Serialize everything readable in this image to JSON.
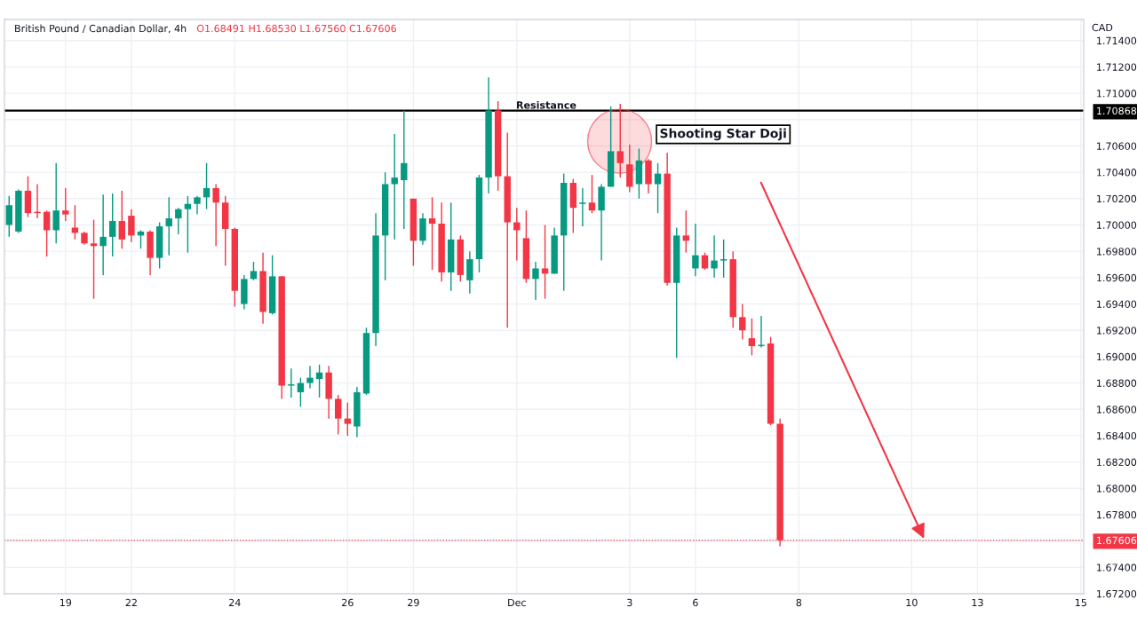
{
  "chart_data": {
    "type": "candlestick",
    "title": "British Pound / Canadian Dollar, 4h",
    "subtitle": "O1.68491 H1.68530 L1.67560 C1.67606",
    "ylabel": "CAD",
    "categories": [
      null,
      null,
      null,
      null,
      null,
      null,
      "19",
      null,
      null,
      null,
      null,
      null,
      null,
      "22",
      null,
      null,
      null,
      null,
      null,
      null,
      null,
      null,
      null,
      null,
      "24",
      null,
      null,
      null,
      null,
      null,
      null,
      null,
      null,
      null,
      null,
      null,
      "26",
      null,
      null,
      null,
      null,
      null,
      null,
      "29",
      null,
      null,
      null,
      null,
      null,
      null,
      null,
      null,
      null,
      null,
      "Dec",
      null,
      null,
      null,
      null,
      null,
      null,
      null,
      null,
      null,
      null,
      null,
      "3",
      null,
      null,
      null,
      null,
      null,
      null,
      "6",
      null,
      null,
      null,
      null,
      null,
      null,
      null,
      null,
      null,
      null,
      "8",
      null,
      null,
      null,
      null,
      null,
      null,
      null,
      null,
      null,
      null,
      null,
      "10",
      null,
      null,
      null,
      null,
      null,
      null,
      "13",
      null,
      null,
      null,
      null,
      null,
      null,
      null,
      null,
      null,
      null,
      "15"
    ],
    "ohlc": [
      [
        1.7,
        1.7022,
        1.6991,
        1.7015
      ],
      [
        1.6995,
        1.7027,
        1.6994,
        1.7026
      ],
      [
        1.7026,
        1.7037,
        1.7006,
        1.7009
      ],
      [
        1.701,
        1.7031,
        1.7005,
        1.7009
      ],
      [
        1.701,
        1.7011,
        1.6976,
        1.6996
      ],
      [
        1.6996,
        1.7047,
        1.6986,
        1.7011
      ],
      [
        1.7011,
        1.7028,
        1.7003,
        1.7008
      ],
      [
        1.6998,
        1.7015,
        1.6989,
        1.6994
      ],
      [
        1.6994,
        1.6995,
        1.6985,
        1.6986
      ],
      [
        1.6986,
        1.7004,
        1.6944,
        1.6984
      ],
      [
        1.6984,
        1.7023,
        1.6962,
        1.6991
      ],
      [
        1.6991,
        1.7024,
        1.6976,
        1.7003
      ],
      [
        1.7003,
        1.7026,
        1.6982,
        1.6989
      ],
      [
        1.7007,
        1.7012,
        1.6987,
        1.6992
      ],
      [
        1.6992,
        1.6996,
        1.6982,
        1.6995
      ],
      [
        1.6995,
        1.6996,
        1.6962,
        1.6975
      ],
      [
        1.6975,
        1.7002,
        1.6967,
        1.6999
      ],
      [
        1.6999,
        1.7021,
        1.6977,
        1.7005
      ],
      [
        1.7005,
        1.7013,
        1.6993,
        1.7012
      ],
      [
        1.7012,
        1.7022,
        1.6979,
        1.7016
      ],
      [
        1.7016,
        1.7022,
        1.7008,
        1.7021
      ],
      [
        1.7021,
        1.7047,
        1.7012,
        1.7028
      ],
      [
        1.7028,
        1.7031,
        1.6984,
        1.7017
      ],
      [
        1.7017,
        1.7022,
        1.6969,
        1.6997
      ],
      [
        1.6997,
        1.6998,
        1.6938,
        1.695
      ],
      [
        1.694,
        1.6962,
        1.6936,
        1.6959
      ],
      [
        1.6959,
        1.6972,
        1.6958,
        1.6965
      ],
      [
        1.6965,
        1.6979,
        1.6925,
        1.6934
      ],
      [
        1.6933,
        1.6977,
        1.6932,
        1.6961
      ],
      [
        1.6961,
        1.6961,
        1.6868,
        1.6878
      ],
      [
        1.6878,
        1.6891,
        1.6869,
        1.6879
      ],
      [
        1.6873,
        1.6884,
        1.6862,
        1.688
      ],
      [
        1.688,
        1.6893,
        1.6876,
        1.6884
      ],
      [
        1.6883,
        1.6894,
        1.6869,
        1.6888
      ],
      [
        1.6888,
        1.6893,
        1.6853,
        1.6868
      ],
      [
        1.6868,
        1.6871,
        1.6841,
        1.6853
      ],
      [
        1.6853,
        1.6865,
        1.684,
        1.6849
      ],
      [
        1.6847,
        1.6877,
        1.6839,
        1.6873
      ],
      [
        1.6872,
        1.6922,
        1.6871,
        1.6918
      ],
      [
        1.6918,
        1.7009,
        1.6908,
        1.6992
      ],
      [
        1.6992,
        1.704,
        1.6958,
        1.7031
      ],
      [
        1.7031,
        1.7069,
        1.6989,
        1.7036
      ],
      [
        1.7034,
        1.7087,
        1.6997,
        1.7047
      ],
      [
        1.702,
        1.702,
        1.6969,
        1.6988
      ],
      [
        1.6988,
        1.7009,
        1.6985,
        1.7005
      ],
      [
        1.7005,
        1.7021,
        1.6966,
        1.7001
      ],
      [
        1.7001,
        1.7017,
        1.6957,
        1.6964
      ],
      [
        1.6964,
        1.7017,
        1.695,
        1.6989
      ],
      [
        1.6989,
        1.6992,
        1.6957,
        1.6962
      ],
      [
        1.6958,
        1.698,
        1.6948,
        1.6974
      ],
      [
        1.6974,
        1.7038,
        1.6964,
        1.7036
      ],
      [
        1.7036,
        1.7112,
        1.7024,
        1.7087
      ],
      [
        1.7087,
        1.7094,
        1.7026,
        1.7037
      ],
      [
        1.7037,
        1.707,
        1.6922,
        1.7002
      ],
      [
        1.7002,
        1.7013,
        1.6973,
        1.6996
      ],
      [
        1.699,
        1.7011,
        1.6956,
        1.6959
      ],
      [
        1.6959,
        1.6972,
        1.6943,
        1.6967
      ],
      [
        1.6967,
        1.7,
        1.6944,
        1.6963
      ],
      [
        1.6963,
        1.6998,
        1.6963,
        1.6992
      ],
      [
        1.6992,
        1.7039,
        1.695,
        1.7032
      ],
      [
        1.7032,
        1.7035,
        1.6994,
        1.7013
      ],
      [
        1.7016,
        1.7028,
        1.6999,
        1.7017
      ],
      [
        1.7017,
        1.7038,
        1.7009,
        1.7011
      ],
      [
        1.7011,
        1.7031,
        1.6973,
        1.7029
      ],
      [
        1.7029,
        1.709,
        1.7029,
        1.7056
      ],
      [
        1.7056,
        1.7092,
        1.7036,
        1.7047
      ],
      [
        1.7046,
        1.7061,
        1.7025,
        1.7029
      ],
      [
        1.7031,
        1.7058,
        1.702,
        1.7049
      ],
      [
        1.7049,
        1.705,
        1.7024,
        1.7031
      ],
      [
        1.7031,
        1.7047,
        1.7009,
        1.7039
      ],
      [
        1.7039,
        1.7055,
        1.6954,
        1.6956
      ],
      [
        1.6956,
        1.6998,
        1.6899,
        1.6992
      ],
      [
        1.6992,
        1.7011,
        1.6979,
        1.6988
      ],
      [
        1.6967,
        1.7001,
        1.6961,
        1.6977
      ],
      [
        1.6977,
        1.6979,
        1.6966,
        1.6967
      ],
      [
        1.6967,
        1.6992,
        1.696,
        1.6973
      ],
      [
        1.6973,
        1.6989,
        1.696,
        1.6974
      ],
      [
        1.6974,
        1.698,
        1.6922,
        1.693
      ],
      [
        1.693,
        1.694,
        1.6913,
        1.692
      ],
      [
        1.6914,
        1.6929,
        1.6901,
        1.6908
      ],
      [
        1.6908,
        1.6931,
        1.6907,
        1.6909
      ],
      [
        1.691,
        1.6915,
        1.6848,
        1.6849
      ],
      [
        1.68491,
        1.6853,
        1.6756,
        1.67606
      ],
      null,
      null,
      null,
      null,
      null,
      null,
      null,
      null,
      null,
      null,
      null,
      null,
      null,
      null,
      null,
      null,
      null,
      null,
      null,
      null,
      null,
      null,
      null,
      null,
      null,
      null,
      null,
      null,
      null,
      null,
      null,
      null
    ],
    "colors": [
      "#089981",
      "#089981",
      "#f23645",
      "#f23645",
      "#f23645",
      "#089981",
      "#f23645",
      "#f23645",
      "#f23645",
      "#f23645",
      "#089981",
      "#089981",
      "#f23645",
      "#f23645",
      "#089981",
      "#f23645",
      "#089981",
      "#089981",
      "#089981",
      "#089981",
      "#089981",
      "#089981",
      "#f23645",
      "#f23645",
      "#f23645",
      "#089981",
      "#089981",
      "#f23645",
      "#089981",
      "#f23645",
      "#089981",
      "#089981",
      "#089981",
      "#089981",
      "#f23645",
      "#f23645",
      "#f23645",
      "#089981",
      "#089981",
      "#089981",
      "#089981",
      "#089981",
      "#089981",
      "#f23645",
      "#089981",
      "#f23645",
      "#f23645",
      "#089981",
      "#f23645",
      "#089981",
      "#089981",
      "#089981",
      "#f23645",
      "#f23645",
      "#f23645",
      "#f23645",
      "#089981",
      "#f23645",
      "#089981",
      "#089981",
      "#f23645",
      "#089981",
      "#f23645",
      "#089981",
      "#089981",
      "#f23645",
      "#f23645",
      "#089981",
      "#f23645",
      "#089981",
      "#f23645",
      "#089981",
      "#f23645",
      "#089981",
      "#f23645",
      "#089981",
      "#089981",
      "#f23645",
      "#f23645",
      "#f23645",
      "#089981",
      "#f23645",
      "#f23645",
      null,
      null,
      null,
      null,
      null,
      null,
      null,
      null,
      null,
      null,
      null,
      null,
      null,
      null,
      null,
      null,
      null,
      null,
      null,
      null,
      null,
      null,
      null,
      null,
      null,
      null,
      null,
      null,
      null,
      null,
      null,
      null
    ],
    "ylim": [
      1.672,
      1.7156
    ],
    "yticks": [
      {
        "value": 1.672,
        "label": "1.67200"
      },
      {
        "value": 1.674,
        "label": "1.67400"
      },
      {
        "value": 1.676,
        "label": null
      },
      {
        "value": 1.67606,
        "label": "1.67606"
      },
      {
        "value": 1.678,
        "label": "1.67800"
      },
      {
        "value": 1.68,
        "label": "1.68000"
      },
      {
        "value": 1.682,
        "label": "1.68200"
      },
      {
        "value": 1.684,
        "label": "1.68400"
      },
      {
        "value": 1.686,
        "label": "1.68600"
      },
      {
        "value": 1.688,
        "label": "1.68800"
      },
      {
        "value": 1.69,
        "label": "1.69000"
      },
      {
        "value": 1.692,
        "label": "1.69200"
      },
      {
        "value": 1.694,
        "label": "1.69400"
      },
      {
        "value": 1.696,
        "label": "1.69600"
      },
      {
        "value": 1.698,
        "label": "1.69800"
      },
      {
        "value": 1.7,
        "label": "1.70000"
      },
      {
        "value": 1.702,
        "label": "1.70200"
      },
      {
        "value": 1.704,
        "label": "1.70400"
      },
      {
        "value": 1.706,
        "label": "1.70600"
      },
      {
        "value": 1.708,
        "label": null
      },
      {
        "value": 1.70868,
        "label": "1.70868"
      },
      {
        "value": 1.71,
        "label": "1.71000"
      },
      {
        "value": 1.712,
        "label": "1.71200"
      },
      {
        "value": 1.714,
        "label": "1.71400"
      }
    ],
    "grid": true,
    "ref_lines": [
      {
        "axis": "y",
        "value": 1.70868,
        "label": "Resistance",
        "color": "#000000",
        "line_style": "solid"
      },
      {
        "axis": "y",
        "value": 1.67606,
        "color": "#f23645",
        "line_style": "dotted"
      }
    ],
    "annotations": [
      "Shooting Star Doji"
    ]
  }
}
